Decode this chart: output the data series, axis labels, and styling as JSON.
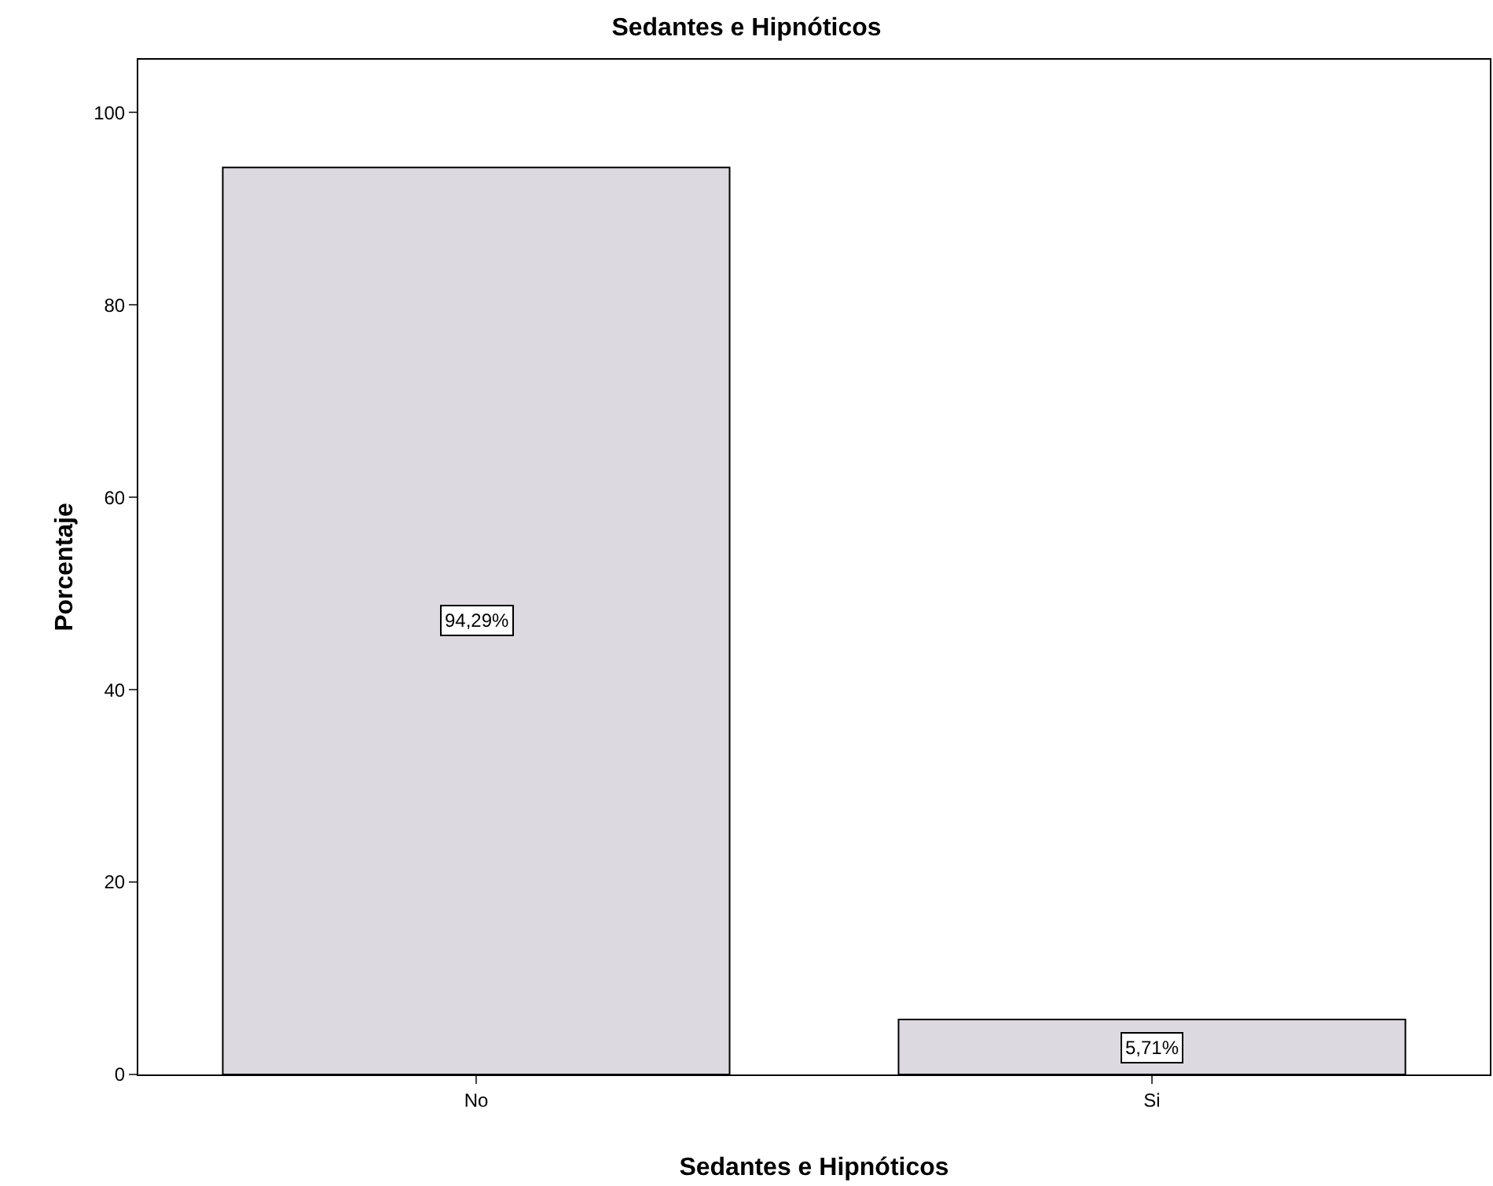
{
  "chart_data": {
    "type": "bar",
    "title": "Sedantes e Hipnóticos",
    "xlabel": "Sedantes e Hipnóticos",
    "ylabel": "Porcentaje",
    "categories": [
      "No",
      "Si"
    ],
    "values": [
      94.29,
      5.71
    ],
    "value_labels": [
      "94,29%",
      "5,71%"
    ],
    "color": "#dcdae0",
    "ylim": [
      0,
      105.5
    ],
    "yticks": [
      0,
      20,
      40,
      60,
      80,
      100
    ],
    "grid": false,
    "legend": false
  }
}
